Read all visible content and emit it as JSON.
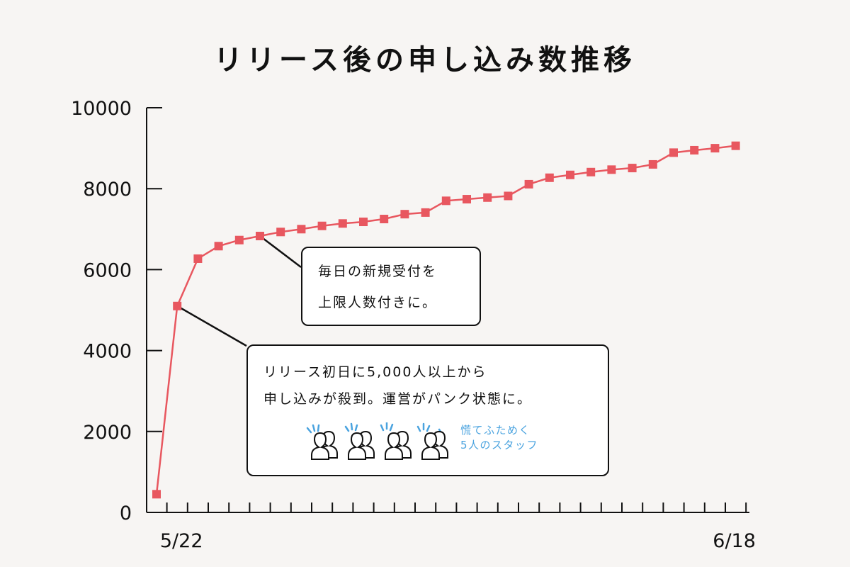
{
  "title": "リリース後の申し込み数推移",
  "chart_data": {
    "type": "line",
    "title": "リリース後の申し込み数推移",
    "xlabel": "",
    "ylabel": "",
    "x_tick_labels": [
      "5/22",
      "6/18"
    ],
    "x_range": [
      "5/21",
      "6/18"
    ],
    "ylim": [
      0,
      10000
    ],
    "y_ticks": [
      0,
      2000,
      4000,
      6000,
      8000,
      10000
    ],
    "grid": false,
    "series": [
      {
        "color": "#e8575f",
        "x": [
          "5/21",
          "5/22",
          "5/23",
          "5/24",
          "5/25",
          "5/26",
          "5/27",
          "5/28",
          "5/29",
          "5/30",
          "5/31",
          "6/1",
          "6/2",
          "6/3",
          "6/4",
          "6/5",
          "6/6",
          "6/7",
          "6/8",
          "6/9",
          "6/10",
          "6/11",
          "6/12",
          "6/13",
          "6/14",
          "6/15",
          "6/16",
          "6/17",
          "6/18"
        ],
        "values": [
          450,
          5100,
          6270,
          6580,
          6730,
          6830,
          6930,
          7000,
          7080,
          7140,
          7180,
          7250,
          7370,
          7410,
          7700,
          7740,
          7780,
          7820,
          8110,
          8270,
          8340,
          8410,
          8470,
          8510,
          8600,
          8890,
          8950,
          9000,
          9060
        ]
      }
    ],
    "annotations": [
      {
        "lines": [
          "毎日の新規受付を",
          "上限人数付きに。"
        ],
        "target_index": 5
      },
      {
        "lines": [
          "リリース初日に5,000人以上から",
          "申し込みが殺到。運営がパンク状態に。"
        ],
        "target_index": 1,
        "note": [
          "慌てふためく",
          "5人のスタッフ"
        ]
      }
    ]
  },
  "colors": {
    "series": "#e8575f",
    "axis": "#111111",
    "note": "#4aa3df"
  },
  "icons": [
    "person-group-icon",
    "person-group-icon",
    "person-group-icon",
    "person-group-icon"
  ]
}
